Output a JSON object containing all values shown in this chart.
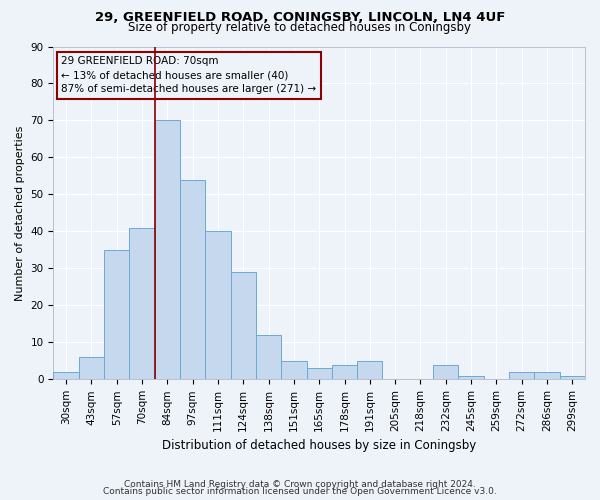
{
  "title1": "29, GREENFIELD ROAD, CONINGSBY, LINCOLN, LN4 4UF",
  "title2": "Size of property relative to detached houses in Coningsby",
  "xlabel": "Distribution of detached houses by size in Coningsby",
  "ylabel": "Number of detached properties",
  "bar_labels": [
    "30sqm",
    "43sqm",
    "57sqm",
    "70sqm",
    "84sqm",
    "97sqm",
    "111sqm",
    "124sqm",
    "138sqm",
    "151sqm",
    "165sqm",
    "178sqm",
    "191sqm",
    "205sqm",
    "218sqm",
    "232sqm",
    "245sqm",
    "259sqm",
    "272sqm",
    "286sqm",
    "299sqm"
  ],
  "bar_values": [
    2,
    6,
    35,
    41,
    70,
    54,
    40,
    29,
    12,
    5,
    3,
    4,
    5,
    0,
    0,
    4,
    1,
    0,
    2,
    2,
    1
  ],
  "bar_color": "#c5d8ee",
  "bar_edge_color": "#6aaad4",
  "annotation_text_line1": "29 GREENFIELD ROAD: 70sqm",
  "annotation_text_line2": "← 13% of detached houses are smaller (40)",
  "annotation_text_line3": "87% of semi-detached houses are larger (271) →",
  "vline_bar_index": 3,
  "ylim": [
    0,
    90
  ],
  "yticks": [
    0,
    10,
    20,
    30,
    40,
    50,
    60,
    70,
    80,
    90
  ],
  "footnote1": "Contains HM Land Registry data © Crown copyright and database right 2024.",
  "footnote2": "Contains public sector information licensed under the Open Government Licence v3.0.",
  "background_color": "#eef2f9",
  "grid_color": "#ffffff",
  "spine_color": "#b0b8cc",
  "title1_fontsize": 9.5,
  "title2_fontsize": 8.5,
  "ylabel_fontsize": 8,
  "xlabel_fontsize": 8.5,
  "tick_fontsize": 7.5,
  "annotation_fontsize": 7.5,
  "footnote_fontsize": 6.5
}
